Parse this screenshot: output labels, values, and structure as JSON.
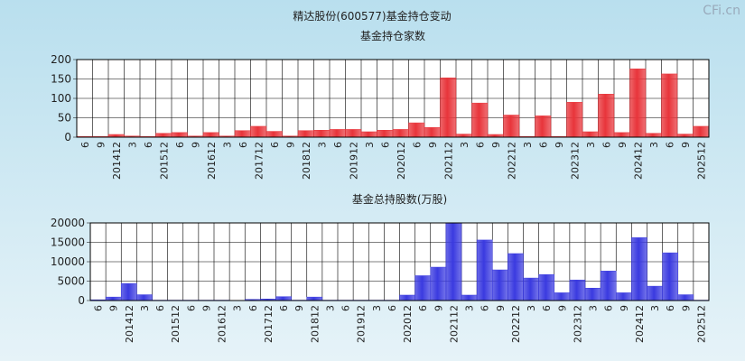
{
  "title": "精达股份(600577)基金持仓变动",
  "watermark": "CFi.cn",
  "chart_data": [
    {
      "type": "bar",
      "title": "基金持仓家数",
      "categories": [
        "6",
        "9",
        "201412",
        "3",
        "6",
        "201512",
        "6",
        "9",
        "201612",
        "3",
        "6",
        "201712",
        "6",
        "9",
        "201812",
        "3",
        "6",
        "201912",
        "3",
        "6",
        "202012",
        "6",
        "9",
        "202112",
        "3",
        "6",
        "9",
        "202212",
        "3",
        "6",
        "9",
        "202312",
        "3",
        "6",
        "9",
        "202412",
        "3",
        "6",
        "9",
        "202512"
      ],
      "values": [
        2,
        2,
        7,
        3,
        2,
        10,
        12,
        3,
        12,
        3,
        17,
        28,
        15,
        3,
        17,
        18,
        20,
        20,
        14,
        18,
        20,
        37,
        25,
        153,
        8,
        88,
        7,
        57,
        2,
        55,
        2,
        90,
        14,
        111,
        12,
        176,
        10,
        163,
        8,
        28
      ],
      "color": "#e8343a",
      "ylim": [
        0,
        200
      ],
      "yticks": [
        0,
        50,
        100,
        150,
        200
      ],
      "grid": true
    },
    {
      "type": "bar",
      "title": "基金总持股数(万股)",
      "categories": [
        "6",
        "9",
        "201412",
        "3",
        "6",
        "201512",
        "6",
        "9",
        "201612",
        "3",
        "6",
        "201712",
        "6",
        "9",
        "201812",
        "3",
        "6",
        "201912",
        "3",
        "6",
        "202012",
        "6",
        "9",
        "202112",
        "3",
        "6",
        "9",
        "202212",
        "3",
        "6",
        "9",
        "202312",
        "3",
        "6",
        "9",
        "202412",
        "3",
        "6",
        "9",
        "202512"
      ],
      "values": [
        200,
        900,
        4400,
        1500,
        100,
        100,
        100,
        100,
        100,
        50,
        300,
        400,
        1000,
        100,
        900,
        100,
        100,
        100,
        100,
        100,
        1400,
        6400,
        8600,
        20000,
        1400,
        15600,
        7900,
        12100,
        5800,
        6700,
        2000,
        5300,
        3200,
        7600,
        2000,
        16200,
        3700,
        12300,
        1500,
        100
      ],
      "color": "#3a3ae0",
      "ylim": [
        0,
        20000
      ],
      "yticks": [
        0,
        5000,
        10000,
        15000,
        20000
      ],
      "grid": true
    }
  ]
}
